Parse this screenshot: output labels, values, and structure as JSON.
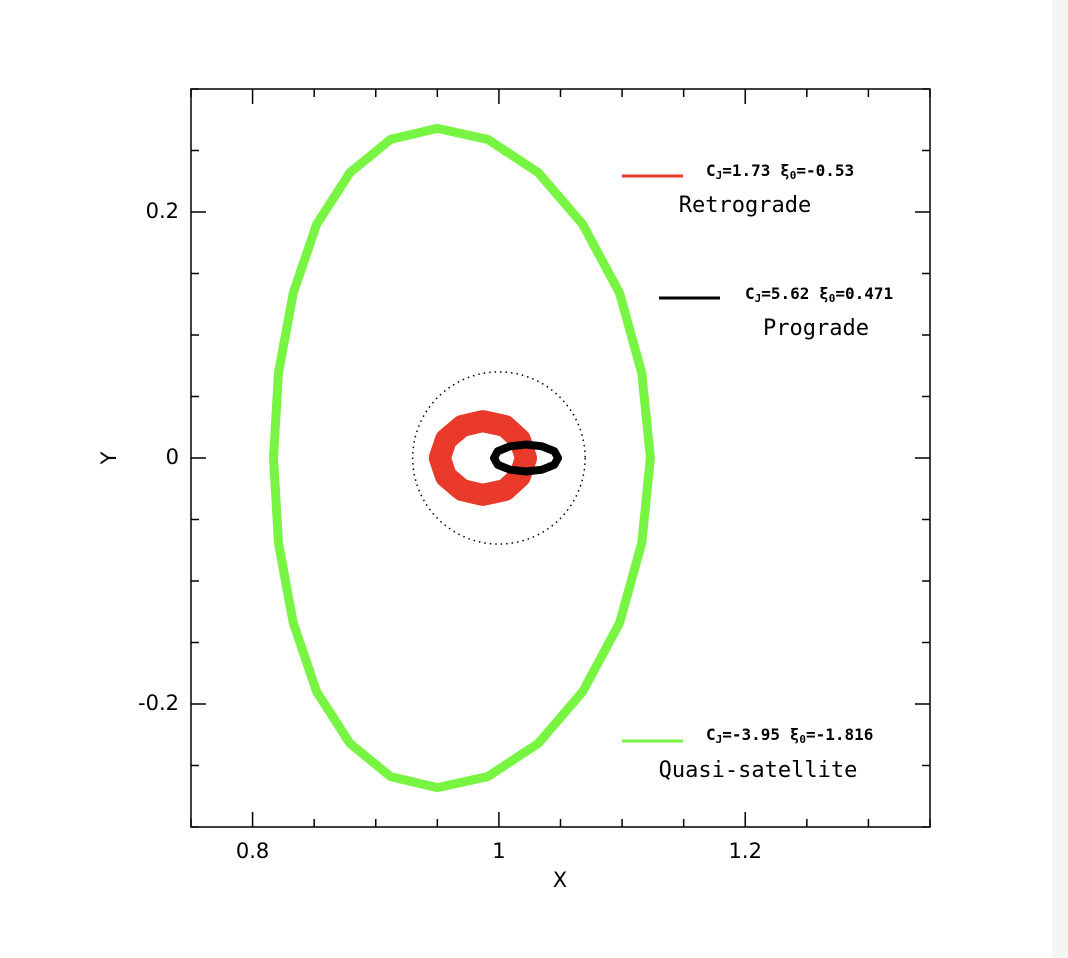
{
  "chart_data": {
    "type": "orbit",
    "x_label": "X",
    "y_label": "Y",
    "xlim": [
      0.75,
      1.35
    ],
    "ylim": [
      -0.3,
      0.3
    ],
    "xticks": [
      0.8,
      1,
      1.2
    ],
    "yticks": [
      -0.2,
      0,
      0.2
    ],
    "xminorticks": [
      0.75,
      0.85,
      0.9,
      0.95,
      1.05,
      1.1,
      1.15,
      1.25,
      1.3,
      1.35
    ],
    "yminorticks": [
      -0.3,
      -0.25,
      -0.15,
      -0.1,
      -0.05,
      0.05,
      0.1,
      0.15,
      0.25,
      0.3
    ],
    "circle": {
      "center": [
        1,
        0
      ],
      "radius": 0.07,
      "style": "dotted",
      "color": "#000000"
    },
    "series": [
      {
        "name": "Quasi-satellite",
        "color": "#77f542",
        "label_parts": [
          {
            "text": "C"
          },
          {
            "text": "J",
            "sub": true
          },
          {
            "text": "=-3.95 "
          },
          {
            "text": "ξ"
          },
          {
            "text": "0",
            "sub": true
          },
          {
            "text": "=-1.816"
          }
        ],
        "x": [
          1.123,
          1.116,
          1.098,
          1.068,
          1.032,
          0.991,
          0.95,
          0.912,
          0.879,
          0.852,
          0.833,
          0.821,
          0.817,
          0.821,
          0.833,
          0.852,
          0.879,
          0.912,
          0.95,
          0.991,
          1.032,
          1.068,
          1.098,
          1.116,
          1.123
        ],
        "y": [
          0,
          0.069,
          0.134,
          0.19,
          0.232,
          0.259,
          0.268,
          0.259,
          0.232,
          0.19,
          0.134,
          0.069,
          0,
          -0.069,
          -0.134,
          -0.19,
          -0.232,
          -0.259,
          -0.268,
          -0.259,
          -0.232,
          -0.19,
          -0.134,
          -0.069,
          0
        ]
      },
      {
        "name": "Retrograde",
        "color": "#e8392a",
        "label_parts": [
          {
            "text": "C"
          },
          {
            "text": "J",
            "sub": true
          },
          {
            "text": "=1.73 "
          },
          {
            "text": "ξ"
          },
          {
            "text": "0",
            "sub": true
          },
          {
            "text": "=-0.53"
          }
        ],
        "x": [
          1.022,
          1.017,
          1.005,
          0.987,
          0.97,
          0.957,
          0.952,
          0.957,
          0.97,
          0.987,
          1.005,
          1.017,
          1.022
        ],
        "y": [
          0,
          0.015,
          0.026,
          0.03,
          0.026,
          0.015,
          0,
          -0.015,
          -0.026,
          -0.03,
          -0.026,
          -0.015,
          0
        ]
      },
      {
        "name": "Prograde",
        "color": "#000000",
        "label_parts": [
          {
            "text": "C"
          },
          {
            "text": "J",
            "sub": true
          },
          {
            "text": "=5.62 "
          },
          {
            "text": "ξ"
          },
          {
            "text": "0",
            "sub": true
          },
          {
            "text": "=0.471"
          }
        ],
        "x": [
          1.048,
          1.045,
          1.035,
          1.022,
          1.009,
          0.999,
          0.996,
          0.999,
          1.009,
          1.022,
          1.035,
          1.045,
          1.048
        ],
        "y": [
          0,
          0.0055,
          0.0095,
          0.011,
          0.0095,
          0.0055,
          0,
          -0.0055,
          -0.0095,
          -0.011,
          -0.0095,
          -0.0055,
          0
        ]
      }
    ]
  }
}
